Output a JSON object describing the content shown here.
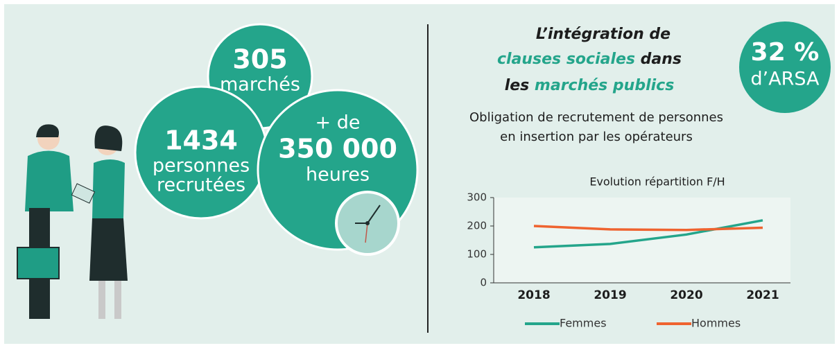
{
  "stats": [
    {
      "number": "305",
      "lines": [
        "marchés"
      ]
    },
    {
      "number": "1434",
      "lines": [
        "personnes",
        "recrutées"
      ]
    },
    {
      "prefix": "+ de",
      "number": "350 000",
      "lines": [
        "heures"
      ]
    }
  ],
  "badge": {
    "number": "32 %",
    "label": "d’ARSA"
  },
  "title": {
    "line1": "L’intégration de",
    "line2": [
      "clauses sociales",
      " dans"
    ],
    "line3": [
      "les ",
      "marchés publics"
    ]
  },
  "subtitle": [
    "Obligation de recrutement de personnes",
    "en insertion par les opérateurs"
  ],
  "chart_data": {
    "type": "line",
    "title": "Evolution répartition F/H",
    "categories": [
      "2018",
      "2019",
      "2020",
      "2021"
    ],
    "series": [
      {
        "name": "Femmes",
        "color": "#24a58b",
        "values": [
          125,
          137,
          170,
          220
        ]
      },
      {
        "name": "Hommes",
        "color": "#ef6330",
        "values": [
          200,
          188,
          186,
          194
        ]
      }
    ],
    "ylim": [
      0,
      300
    ],
    "yticks": [
      0,
      100,
      200,
      300
    ],
    "grid": false,
    "legend": "bottom"
  }
}
